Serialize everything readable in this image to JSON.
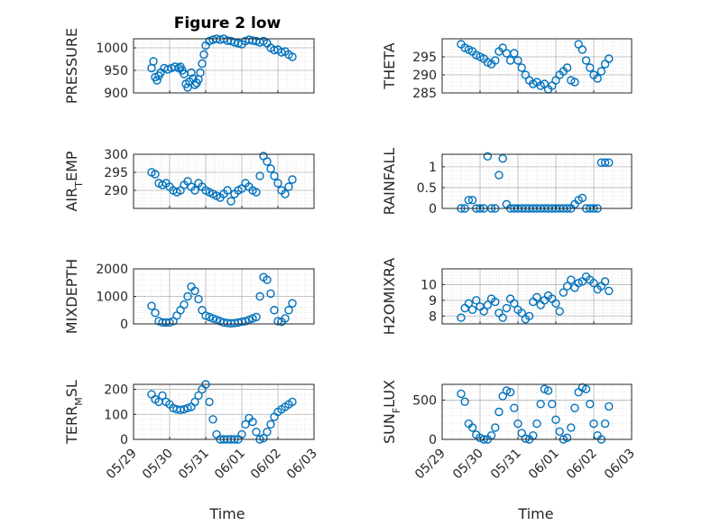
{
  "figure_title": "Figure 2 low",
  "colors": {
    "marker": "#0072BD",
    "axis": "#262626",
    "grid": "#b4b4b4",
    "minor_grid": "#d6d6d6"
  },
  "chart_data": [
    {
      "type": "scatter",
      "title": "Figure 2 low",
      "ylabel": "PRESSURE",
      "xlim": [
        "05/29",
        "06/03"
      ],
      "ylim": [
        900,
        1020
      ],
      "yticks": [
        900,
        950,
        1000
      ],
      "grid": true,
      "legend": "none",
      "x": [
        "05/29 12:00",
        "05/29 13:12",
        "05/29 14:24",
        "05/29 15:36",
        "05/29 16:48",
        "05/29 18:00",
        "05/29 20:24",
        "05/29 22:48",
        "05/30 01:12",
        "05/30 03:36",
        "05/30 06:00",
        "05/30 07:12",
        "05/30 08:24",
        "05/30 09:36",
        "05/30 10:48",
        "05/30 12:00",
        "05/30 13:12",
        "05/30 14:24",
        "05/30 15:36",
        "05/30 16:48",
        "05/30 18:00",
        "05/30 19:12",
        "05/30 20:24",
        "05/30 21:36",
        "05/30 22:48",
        "05/31 00:00",
        "05/31 02:24",
        "05/31 04:48",
        "05/31 07:12",
        "05/31 09:36",
        "05/31 12:00",
        "05/31 14:24",
        "05/31 16:48",
        "05/31 19:12",
        "05/31 21:36",
        "06/01 00:00",
        "06/01 02:24",
        "06/01 04:48",
        "06/01 07:12",
        "06/01 09:36",
        "06/01 12:00",
        "06/01 14:24",
        "06/01 16:48",
        "06/01 19:12",
        "06/01 21:36",
        "06/02 00:00",
        "06/02 02:24",
        "06/02 04:48",
        "06/02 07:12",
        "06/02 09:36"
      ],
      "y": [
        955,
        970,
        935,
        928,
        938,
        945,
        955,
        952,
        955,
        958,
        955,
        958,
        950,
        942,
        920,
        912,
        925,
        945,
        932,
        918,
        922,
        930,
        945,
        965,
        985,
        1005,
        1015,
        1018,
        1020,
        1018,
        1020,
        1016,
        1015,
        1012,
        1010,
        1008,
        1015,
        1018,
        1016,
        1015,
        1012,
        1015,
        1010,
        1000,
        995,
        996,
        990,
        992,
        985,
        980
      ]
    },
    {
      "type": "scatter",
      "ylabel": "THETA",
      "xlim": [
        "05/29",
        "06/03"
      ],
      "ylim": [
        285,
        300
      ],
      "yticks": [
        285,
        290,
        295
      ],
      "grid": true,
      "legend": "none",
      "x": [
        "05/29 12:00",
        "05/29 14:24",
        "05/29 16:48",
        "05/29 19:12",
        "05/29 21:36",
        "05/30 00:00",
        "05/30 02:24",
        "05/30 04:48",
        "05/30 07:12",
        "05/30 09:36",
        "05/30 12:00",
        "05/30 14:24",
        "05/30 16:48",
        "05/30 19:12",
        "05/30 21:36",
        "05/31 00:00",
        "05/31 02:24",
        "05/31 04:48",
        "05/31 07:12",
        "05/31 09:36",
        "05/31 12:00",
        "05/31 14:24",
        "05/31 16:48",
        "05/31 19:12",
        "05/31 21:36",
        "06/01 00:00",
        "06/01 02:24",
        "06/01 04:48",
        "06/01 07:12",
        "06/01 09:36",
        "06/01 12:00",
        "06/01 14:24",
        "06/01 16:48",
        "06/01 19:12",
        "06/01 21:36",
        "06/02 00:00",
        "06/02 02:24",
        "06/02 04:48",
        "06/02 07:12",
        "06/02 09:36"
      ],
      "y": [
        298.5,
        297.5,
        297,
        296.5,
        295.5,
        295,
        294.5,
        293.5,
        293,
        294,
        296.5,
        297.5,
        296,
        294,
        296,
        294,
        292,
        290,
        288.5,
        287.5,
        288,
        287,
        287.5,
        286,
        287,
        288.5,
        290,
        291,
        292,
        288.5,
        288,
        298.5,
        297,
        294,
        292,
        290,
        289,
        291,
        293,
        294.5
      ]
    },
    {
      "type": "scatter",
      "ylabel": "AIR_TEMP",
      "xlim": [
        "05/29",
        "06/03"
      ],
      "ylim": [
        285,
        300
      ],
      "yticks": [
        290,
        295,
        300
      ],
      "grid": true,
      "legend": "none",
      "x": [
        "05/29 12:00",
        "05/29 14:24",
        "05/29 16:48",
        "05/29 19:12",
        "05/29 21:36",
        "05/30 00:00",
        "05/30 02:24",
        "05/30 04:48",
        "05/30 07:12",
        "05/30 09:36",
        "05/30 12:00",
        "05/30 14:24",
        "05/30 16:48",
        "05/30 19:12",
        "05/30 21:36",
        "05/31 00:00",
        "05/31 02:24",
        "05/31 04:48",
        "05/31 07:12",
        "05/31 09:36",
        "05/31 12:00",
        "05/31 14:24",
        "05/31 16:48",
        "05/31 19:12",
        "05/31 21:36",
        "06/01 00:00",
        "06/01 02:24",
        "06/01 04:48",
        "06/01 07:12",
        "06/01 09:36",
        "06/01 12:00",
        "06/01 14:24",
        "06/01 16:48",
        "06/01 19:12",
        "06/01 21:36",
        "06/02 00:00",
        "06/02 02:24",
        "06/02 04:48",
        "06/02 07:12",
        "06/02 09:36"
      ],
      "y": [
        295,
        294.5,
        292,
        291.5,
        292,
        291,
        290,
        289.5,
        290,
        291.5,
        292.5,
        291,
        290,
        292,
        291,
        290,
        289.5,
        289,
        288.5,
        288,
        289,
        290,
        287,
        289,
        290,
        290.5,
        292,
        291,
        290,
        289.5,
        294,
        299.5,
        298,
        296,
        294,
        292,
        290,
        289,
        291,
        293
      ]
    },
    {
      "type": "scatter",
      "ylabel": "RAINFALL",
      "xlim": [
        "05/29",
        "06/03"
      ],
      "ylim": [
        0,
        1.3
      ],
      "yticks": [
        0,
        0.5,
        1
      ],
      "grid": true,
      "legend": "none",
      "x": [
        "05/29 12:00",
        "05/29 14:24",
        "05/29 16:48",
        "05/29 19:12",
        "05/29 21:36",
        "05/30 00:00",
        "05/30 02:24",
        "05/30 04:48",
        "05/30 07:12",
        "05/30 09:36",
        "05/30 12:00",
        "05/30 14:24",
        "05/30 16:48",
        "05/30 19:12",
        "05/30 21:36",
        "05/31 00:00",
        "05/31 02:24",
        "05/31 04:48",
        "05/31 07:12",
        "05/31 09:36",
        "05/31 12:00",
        "05/31 14:24",
        "05/31 16:48",
        "05/31 19:12",
        "05/31 21:36",
        "06/01 00:00",
        "06/01 02:24",
        "06/01 04:48",
        "06/01 07:12",
        "06/01 09:36",
        "06/01 12:00",
        "06/01 14:24",
        "06/01 16:48",
        "06/01 19:12",
        "06/01 21:36",
        "06/02 00:00",
        "06/02 02:24",
        "06/02 04:48",
        "06/02 07:12",
        "06/02 09:36"
      ],
      "y": [
        0,
        0,
        0.2,
        0.2,
        0,
        0,
        0,
        1.25,
        0,
        0,
        0.8,
        1.2,
        0.1,
        0,
        0,
        0,
        0,
        0,
        0,
        0,
        0,
        0,
        0,
        0,
        0,
        0,
        0,
        0,
        0,
        0,
        0.1,
        0.2,
        0.25,
        0,
        0,
        0,
        0,
        1.1,
        1.1,
        1.1
      ]
    },
    {
      "type": "scatter",
      "ylabel": "MIXDEPTH",
      "xlim": [
        "05/29",
        "06/03"
      ],
      "ylim": [
        0,
        2000
      ],
      "yticks": [
        0,
        1000,
        2000
      ],
      "grid": true,
      "legend": "none",
      "x": [
        "05/29 12:00",
        "05/29 14:24",
        "05/29 16:48",
        "05/29 19:12",
        "05/29 21:36",
        "05/30 00:00",
        "05/30 02:24",
        "05/30 04:48",
        "05/30 07:12",
        "05/30 09:36",
        "05/30 12:00",
        "05/30 14:24",
        "05/30 16:48",
        "05/30 19:12",
        "05/30 21:36",
        "05/31 00:00",
        "05/31 02:24",
        "05/31 04:48",
        "05/31 07:12",
        "05/31 09:36",
        "05/31 12:00",
        "05/31 14:24",
        "05/31 16:48",
        "05/31 19:12",
        "05/31 21:36",
        "06/01 00:00",
        "06/01 02:24",
        "06/01 04:48",
        "06/01 07:12",
        "06/01 09:36",
        "06/01 12:00",
        "06/01 14:24",
        "06/01 16:48",
        "06/01 19:12",
        "06/01 21:36",
        "06/02 00:00",
        "06/02 02:24",
        "06/02 04:48",
        "06/02 07:12",
        "06/02 09:36"
      ],
      "y": [
        650,
        400,
        100,
        50,
        50,
        50,
        100,
        300,
        500,
        700,
        1000,
        1350,
        1200,
        900,
        500,
        300,
        250,
        200,
        150,
        100,
        50,
        30,
        20,
        30,
        50,
        80,
        100,
        150,
        200,
        250,
        1000,
        1700,
        1600,
        1100,
        500,
        100,
        80,
        200,
        500,
        750
      ]
    },
    {
      "type": "scatter",
      "ylabel": "H2OMIXRA",
      "xlim": [
        "05/29",
        "06/03"
      ],
      "ylim": [
        7.5,
        11
      ],
      "yticks": [
        8,
        9,
        10
      ],
      "grid": true,
      "legend": "none",
      "x": [
        "05/29 12:00",
        "05/29 14:24",
        "05/29 16:48",
        "05/29 19:12",
        "05/29 21:36",
        "05/30 00:00",
        "05/30 02:24",
        "05/30 04:48",
        "05/30 07:12",
        "05/30 09:36",
        "05/30 12:00",
        "05/30 14:24",
        "05/30 16:48",
        "05/30 19:12",
        "05/30 21:36",
        "05/31 00:00",
        "05/31 02:24",
        "05/31 04:48",
        "05/31 07:12",
        "05/31 09:36",
        "05/31 12:00",
        "05/31 14:24",
        "05/31 16:48",
        "05/31 19:12",
        "05/31 21:36",
        "06/01 00:00",
        "06/01 02:24",
        "06/01 04:48",
        "06/01 07:12",
        "06/01 09:36",
        "06/01 12:00",
        "06/01 14:24",
        "06/01 16:48",
        "06/01 19:12",
        "06/01 21:36",
        "06/02 00:00",
        "06/02 02:24",
        "06/02 04:48",
        "06/02 07:12",
        "06/02 09:36"
      ],
      "y": [
        7.9,
        8.5,
        8.8,
        8.4,
        9.0,
        8.6,
        8.3,
        8.7,
        9.1,
        8.9,
        8.2,
        7.9,
        8.5,
        9.1,
        8.8,
        8.4,
        8.2,
        7.8,
        8.0,
        8.9,
        9.2,
        8.7,
        9.0,
        9.3,
        9.1,
        8.8,
        8.3,
        9.5,
        9.9,
        10.3,
        9.8,
        10.1,
        10.2,
        10.5,
        10.3,
        10.1,
        9.7,
        9.9,
        10.2,
        9.6
      ]
    },
    {
      "type": "scatter",
      "ylabel": "TERR_MSL",
      "xlim": [
        "05/29",
        "06/03"
      ],
      "ylim": [
        0,
        220
      ],
      "yticks": [
        0,
        100,
        200
      ],
      "grid": true,
      "legend": "none",
      "x": [
        "05/29 12:00",
        "05/29 14:24",
        "05/29 16:48",
        "05/29 19:12",
        "05/29 21:36",
        "05/30 00:00",
        "05/30 02:24",
        "05/30 04:48",
        "05/30 07:12",
        "05/30 09:36",
        "05/30 12:00",
        "05/30 14:24",
        "05/30 16:48",
        "05/30 19:12",
        "05/30 21:36",
        "05/31 00:00",
        "05/31 02:24",
        "05/31 04:48",
        "05/31 07:12",
        "05/31 09:36",
        "05/31 12:00",
        "05/31 14:24",
        "05/31 16:48",
        "05/31 19:12",
        "05/31 21:36",
        "06/01 00:00",
        "06/01 02:24",
        "06/01 04:48",
        "06/01 07:12",
        "06/01 09:36",
        "06/01 12:00",
        "06/01 14:24",
        "06/01 16:48",
        "06/01 19:12",
        "06/01 21:36",
        "06/02 00:00",
        "06/02 02:24",
        "06/02 04:48",
        "06/02 07:12",
        "06/02 09:36"
      ],
      "y": [
        180,
        160,
        150,
        175,
        150,
        140,
        125,
        120,
        118,
        120,
        125,
        130,
        150,
        175,
        200,
        220,
        150,
        80,
        20,
        0,
        0,
        0,
        0,
        0,
        0,
        20,
        60,
        85,
        70,
        30,
        0,
        5,
        30,
        60,
        90,
        110,
        120,
        130,
        140,
        150
      ]
    },
    {
      "type": "scatter",
      "ylabel": "SUN_FLUX",
      "xlim": [
        "05/29",
        "06/03"
      ],
      "ylim": [
        0,
        700
      ],
      "yticks": [
        0,
        500
      ],
      "grid": true,
      "legend": "none",
      "x": [
        "05/29 12:00",
        "05/29 14:24",
        "05/29 16:48",
        "05/29 19:12",
        "05/29 21:36",
        "05/30 00:00",
        "05/30 02:24",
        "05/30 04:48",
        "05/30 07:12",
        "05/30 09:36",
        "05/30 12:00",
        "05/30 14:24",
        "05/30 16:48",
        "05/30 19:12",
        "05/30 21:36",
        "05/31 00:00",
        "05/31 02:24",
        "05/31 04:48",
        "05/31 07:12",
        "05/31 09:36",
        "05/31 12:00",
        "05/31 14:24",
        "05/31 16:48",
        "05/31 19:12",
        "05/31 21:36",
        "06/01 00:00",
        "06/01 02:24",
        "06/01 04:48",
        "06/01 07:12",
        "06/01 09:36",
        "06/01 12:00",
        "06/01 14:24",
        "06/01 16:48",
        "06/01 19:12",
        "06/01 21:36",
        "06/02 00:00",
        "06/02 02:24",
        "06/02 04:48",
        "06/02 07:12",
        "06/02 09:36"
      ],
      "y": [
        580,
        480,
        200,
        150,
        60,
        20,
        0,
        0,
        50,
        150,
        350,
        550,
        620,
        600,
        400,
        200,
        80,
        10,
        0,
        50,
        200,
        450,
        640,
        620,
        450,
        250,
        100,
        0,
        20,
        150,
        400,
        600,
        660,
        640,
        450,
        200,
        50,
        0,
        200,
        420
      ]
    }
  ],
  "x_axis": {
    "ticks": [
      "05/29",
      "05/30",
      "05/31",
      "06/01",
      "06/02",
      "06/03"
    ],
    "label": "Time"
  }
}
